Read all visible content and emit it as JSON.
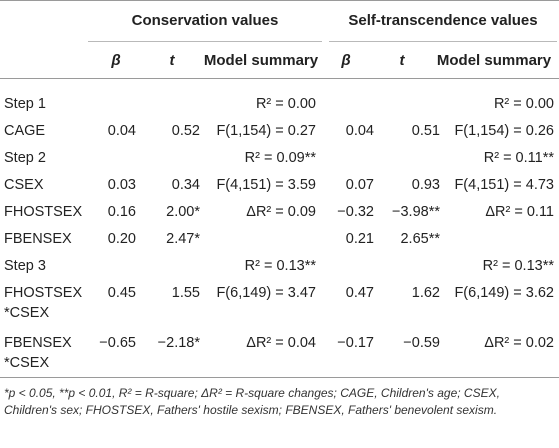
{
  "header": {
    "group_conservation": "Conservation values",
    "group_self": "Self-transcendence values",
    "beta": "β",
    "t": "t",
    "model_summary": "Model summary"
  },
  "rows": [
    {
      "label": "Step 1",
      "c1": "",
      "c2": "",
      "c3": "R² = 0.00",
      "c4": "",
      "c5": "",
      "c6": "R² = 0.00"
    },
    {
      "label": "CAGE",
      "c1": "0.04",
      "c2": "0.52",
      "c3": "F(1,154) = 0.27",
      "c4": "0.04",
      "c5": "0.51",
      "c6": "F(1,154) = 0.26"
    },
    {
      "label": "Step 2",
      "c1": "",
      "c2": "",
      "c3": "R² = 0.09**",
      "c4": "",
      "c5": "",
      "c6": "R² = 0.11**"
    },
    {
      "label": "CSEX",
      "c1": "0.03",
      "c2": "0.34",
      "c3": "F(4,151) = 3.59",
      "c4": "0.07",
      "c5": "0.93",
      "c6": "F(4,151) = 4.73"
    },
    {
      "label": "FHOSTSEX",
      "c1": "0.16",
      "c2": "2.00*",
      "c3": "ΔR² = 0.09",
      "c4": "−0.32",
      "c5": "−3.98**",
      "c6": "ΔR² = 0.11"
    },
    {
      "label": "FBENSEX",
      "c1": "0.20",
      "c2": "2.47*",
      "c3": "",
      "c4": "0.21",
      "c5": "2.65**",
      "c6": ""
    },
    {
      "label": "Step 3",
      "c1": "",
      "c2": "",
      "c3": "R² = 0.13**",
      "c4": "",
      "c5": "",
      "c6": "R² = 0.13**"
    },
    {
      "label": "FHOSTSEX",
      "c1": "0.45",
      "c2": "1.55",
      "c3": "F(6,149) = 3.47",
      "c4": "0.47",
      "c5": "1.62",
      "c6": "F(6,149) = 3.62"
    },
    {
      "label": "*CSEX",
      "c1": "",
      "c2": "",
      "c3": "",
      "c4": "",
      "c5": "",
      "c6": ""
    },
    {
      "label": "FBENSEX",
      "c1": "−0.65",
      "c2": "−2.18*",
      "c3": "ΔR² = 0.04",
      "c4": "−0.17",
      "c5": "−0.59",
      "c6": "ΔR² = 0.02"
    },
    {
      "label": "*CSEX",
      "c1": "",
      "c2": "",
      "c3": "",
      "c4": "",
      "c5": "",
      "c6": ""
    }
  ],
  "footnote": "*p < 0.05, **p < 0.01, R² = R-square; ΔR² = R-square changes; CAGE, Children's age; CSEX, Children's sex; FHOSTSEX, Fathers' hostile sexism; FBENSEX, Fathers' benevolent sexism."
}
